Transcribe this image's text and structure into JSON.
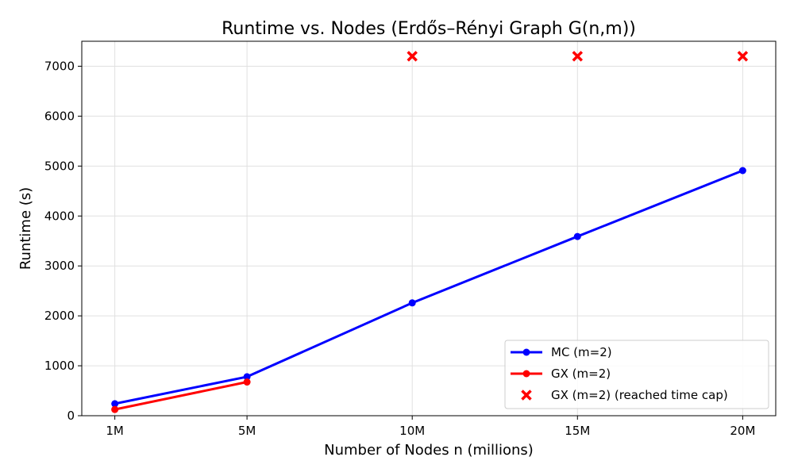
{
  "chart_data": {
    "type": "line",
    "title": "Runtime vs. Nodes (Erdős–Rényi Graph G(n,m))",
    "xlabel": "Number of Nodes n (millions)",
    "ylabel": "Runtime (s)",
    "x": [
      1,
      5,
      10,
      15,
      20
    ],
    "xtick_labels": [
      "1M",
      "5M",
      "10M",
      "15M",
      "20M"
    ],
    "xlim": [
      0,
      21
    ],
    "ylim": [
      0,
      7500
    ],
    "yticks": [
      0,
      1000,
      2000,
      3000,
      4000,
      5000,
      6000,
      7000
    ],
    "grid": true,
    "legend_position": "bottom-right",
    "series": [
      {
        "name": "MC (m=2)",
        "kind": "line",
        "marker": "circle",
        "color": "#0000ff",
        "x": [
          1,
          5,
          10,
          15,
          20
        ],
        "values": [
          240,
          780,
          2260,
          3590,
          4910
        ]
      },
      {
        "name": "GX (m=2)",
        "kind": "line",
        "marker": "circle",
        "color": "#ff0000",
        "x": [
          1,
          5
        ],
        "values": [
          125,
          675
        ]
      },
      {
        "name": "GX (m=2) (reached time cap)",
        "kind": "scatter",
        "marker": "x",
        "color": "#ff0000",
        "x": [
          10,
          15,
          20
        ],
        "values": [
          7200,
          7200,
          7200
        ]
      }
    ]
  }
}
